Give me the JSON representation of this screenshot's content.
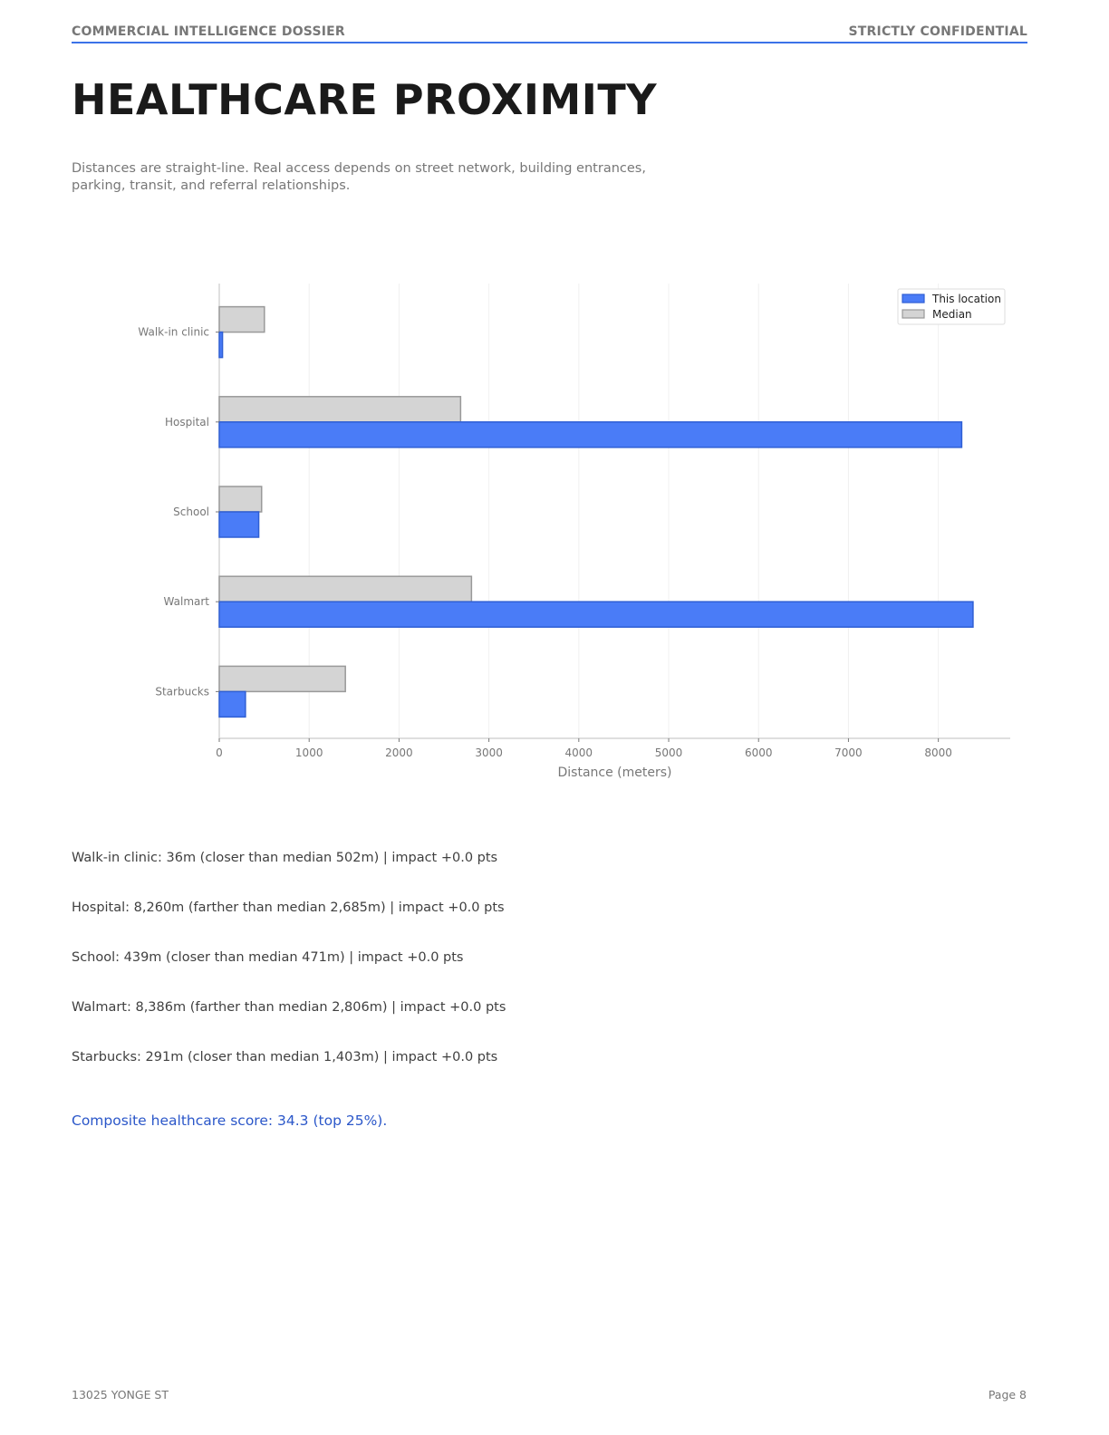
{
  "header": {
    "left": "COMMERCIAL INTELLIGENCE DOSSIER",
    "right": "STRICTLY CONFIDENTIAL"
  },
  "title": "HEALTHCARE PROXIMITY",
  "subtitle": "Distances are straight-line. Real access depends on street network, building entrances, parking, transit, and referral relationships.",
  "chart_data": {
    "type": "bar",
    "orientation": "horizontal",
    "categories": [
      "Walk-in clinic",
      "Hospital",
      "School",
      "Walmart",
      "Starbucks"
    ],
    "series": [
      {
        "name": "This location",
        "values": [
          36,
          8260,
          439,
          8386,
          291
        ],
        "color": "#4a7cf7",
        "edge": "#2f5fd4"
      },
      {
        "name": "Median",
        "values": [
          502,
          2685,
          471,
          2806,
          1403
        ],
        "color": "#d4d4d4",
        "edge": "#999999"
      }
    ],
    "xlabel": "Distance (meters)",
    "ylabel": "",
    "xlim": [
      0,
      8800
    ],
    "xticks": [
      0,
      1000,
      2000,
      3000,
      4000,
      5000,
      6000,
      7000,
      8000
    ],
    "grid": true,
    "legend": "top-right"
  },
  "findings": [
    "Walk-in clinic: 36m (closer than median 502m) | impact +0.0 pts",
    "Hospital: 8,260m (farther than median 2,685m) | impact +0.0 pts",
    "School: 439m (closer than median 471m) | impact +0.0 pts",
    "Walmart: 8,386m (farther than median 2,806m) | impact +0.0 pts",
    "Starbucks: 291m (closer than median 1,403m) | impact +0.0 pts"
  ],
  "score": "Composite healthcare score: 34.3 (top 25%).",
  "footer": {
    "address": "13025 YONGE ST",
    "page": "Page 8"
  }
}
